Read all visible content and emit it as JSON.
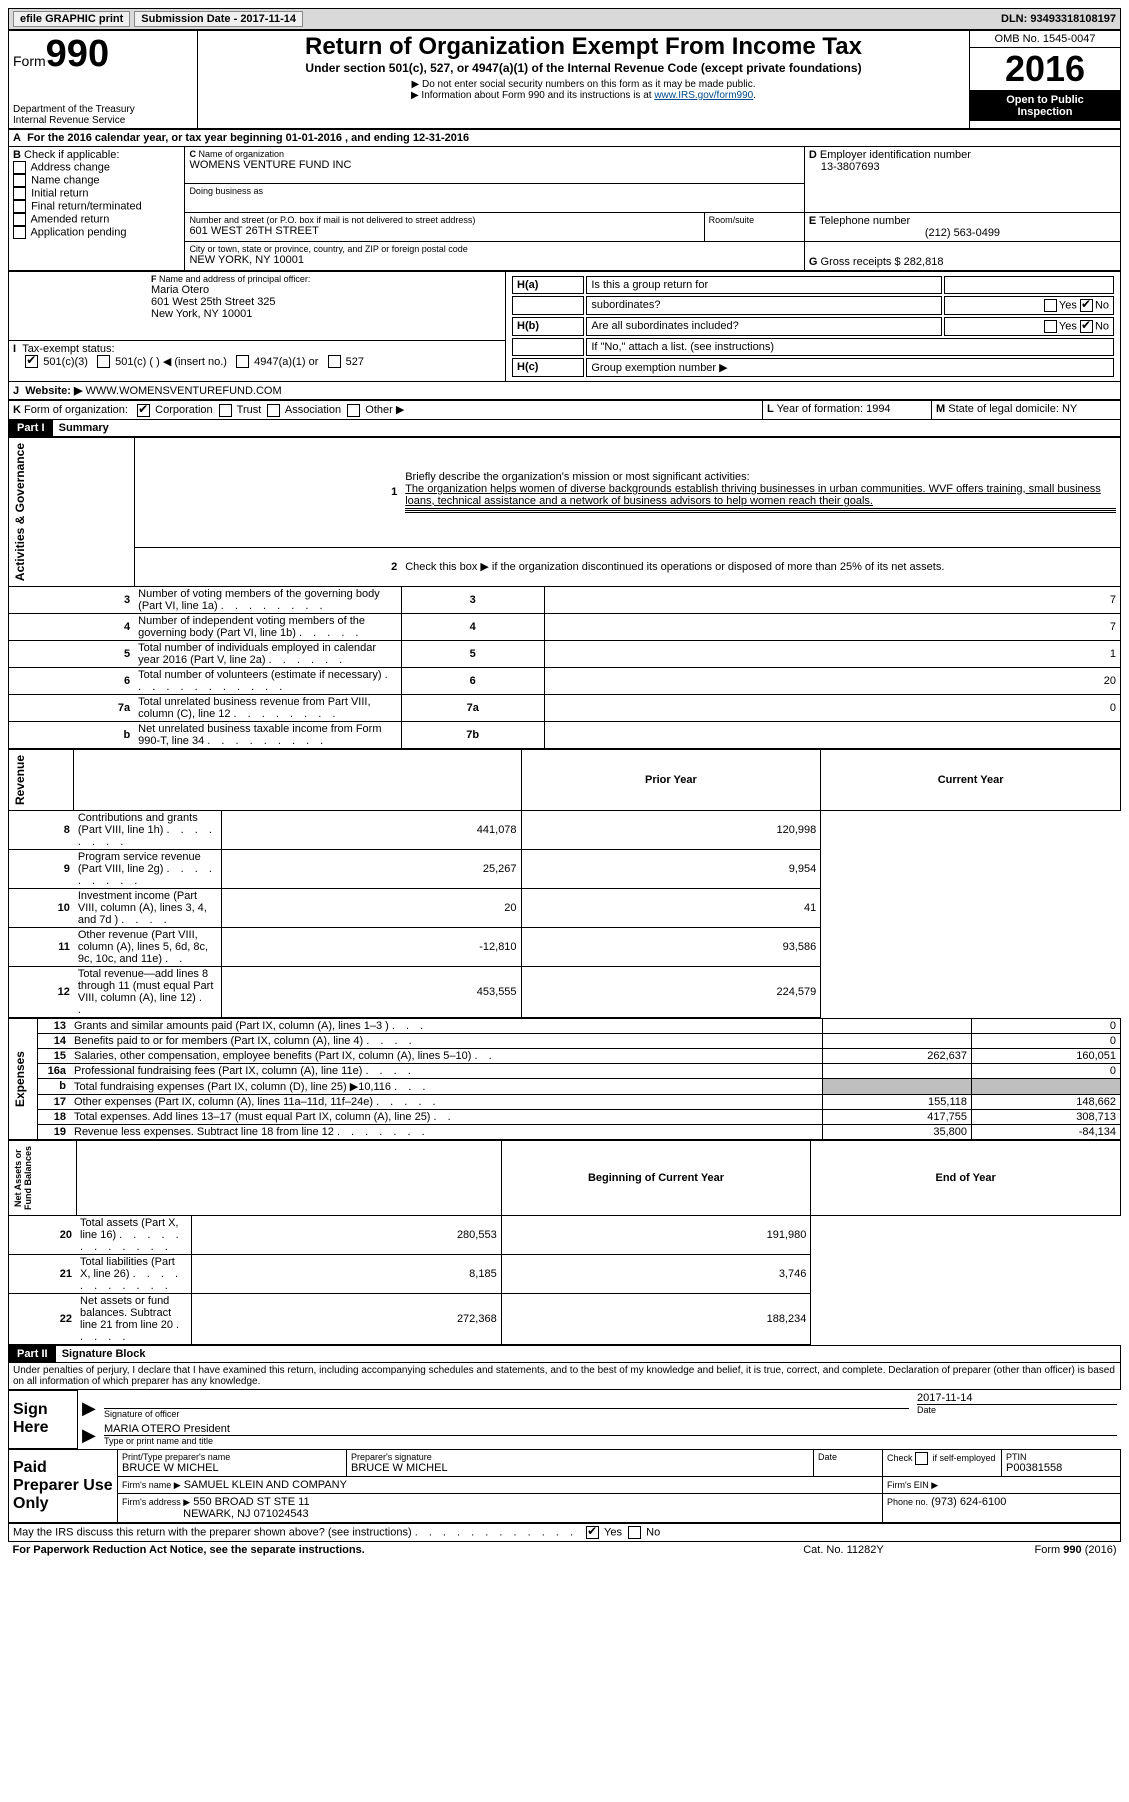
{
  "topbar": {
    "efile": "efile GRAPHIC print",
    "submission": "Submission Date - 2017-11-14",
    "dln": "DLN: 93493318108197"
  },
  "header": {
    "form_word": "Form",
    "form_num": "990",
    "dept": "Department of the Treasury",
    "irs": "Internal Revenue Service",
    "title": "Return of Organization Exempt From Income Tax",
    "subtitle": "Under section 501(c), 527, or 4947(a)(1) of the Internal Revenue Code (except private foundations)",
    "note1": "▶ Do not enter social security numbers on this form as it may be made public.",
    "note2_pre": "▶ Information about Form 990 and its instructions is at ",
    "note2_link": "www.IRS.gov/form990",
    "note2_post": ".",
    "omb": "OMB No. 1545-0047",
    "year": "2016",
    "open1": "Open to Public",
    "open2": "Inspection"
  },
  "sectionA": "For the 2016 calendar year, or tax year beginning 01-01-2016   , and ending 12-31-2016",
  "sectionB": {
    "title": "Check if applicable:",
    "opts": [
      "Address change",
      "Name change",
      "Initial return",
      "Final return/terminated",
      "Amended return",
      "Application pending"
    ]
  },
  "sectionC": {
    "name_label": "Name of organization",
    "name": "WOMENS VENTURE FUND INC",
    "dba": "Doing business as",
    "street_label": "Number and street (or P.O. box if mail is not delivered to street address)",
    "room": "Room/suite",
    "street": "601 WEST 26TH STREET",
    "city_label": "City or town, state or province, country, and ZIP or foreign postal code",
    "city": "NEW YORK, NY  10001"
  },
  "sectionD": {
    "label": "Employer identification number",
    "value": "13-3807693"
  },
  "sectionE": {
    "label": "Telephone number",
    "value": "(212) 563-0499"
  },
  "sectionG": {
    "label": "Gross receipts $",
    "value": "282,818"
  },
  "sectionF": {
    "label": "Name and address of principal officer:",
    "name": "Maria Otero",
    "addr1": "601 West 25th Street 325",
    "addr2": "New York, NY  10001"
  },
  "sectionH": {
    "a": "Is this a group return for",
    "a2": "subordinates?",
    "b": "Are all subordinates included?",
    "note": "If \"No,\" attach a list. (see instructions)",
    "c": "Group exemption number ▶",
    "yes": "Yes",
    "no": "No"
  },
  "sectionI": {
    "label": "Tax-exempt status:",
    "o1": "501(c)(3)",
    "o2": "501(c) (   ) ◀ (insert no.)",
    "o3": "4947(a)(1) or",
    "o4": "527"
  },
  "sectionJ": {
    "label": "Website: ▶",
    "value": "WWW.WOMENSVENTUREFUND.COM"
  },
  "sectionK": {
    "label": "Form of organization:",
    "opts": [
      "Corporation",
      "Trust",
      "Association",
      "Other ▶"
    ]
  },
  "sectionL": {
    "label": "Year of formation:",
    "value": "1994"
  },
  "sectionM": {
    "label": "State of legal domicile:",
    "value": "NY"
  },
  "part1": {
    "label": "Part I",
    "title": "Summary"
  },
  "summary": {
    "q1": "Briefly describe the organization's mission or most significant activities:",
    "mission": "The organization helps women of diverse backgrounds establish thriving businesses in urban communities. WVF offers training, small business loans, technical assistance and a network of business advisors to help women reach their goals.",
    "q2": "Check this box ▶         if the organization discontinued its operations or disposed of more than 25% of its net assets."
  },
  "sidelabels": {
    "gov": "Activities & Governance",
    "rev": "Revenue",
    "exp": "Expenses",
    "net": "Net Assets or\nFund Balances"
  },
  "govRows": [
    {
      "n": "3",
      "t": "Number of voting members of the governing body (Part VI, line 1a)",
      "b": "3",
      "v": "7"
    },
    {
      "n": "4",
      "t": "Number of independent voting members of the governing body (Part VI, line 1b)",
      "b": "4",
      "v": "7"
    },
    {
      "n": "5",
      "t": "Total number of individuals employed in calendar year 2016 (Part V, line 2a)",
      "b": "5",
      "v": "1"
    },
    {
      "n": "6",
      "t": "Total number of volunteers (estimate if necessary)",
      "b": "6",
      "v": "20"
    },
    {
      "n": "7a",
      "t": "Total unrelated business revenue from Part VIII, column (C), line 12",
      "b": "7a",
      "v": "0"
    },
    {
      "n": "b",
      "t": "Net unrelated business taxable income from Form 990-T, line 34",
      "b": "7b",
      "v": ""
    }
  ],
  "headers": {
    "prior": "Prior Year",
    "current": "Current Year",
    "begin": "Beginning of Current Year",
    "end": "End of Year"
  },
  "revRows": [
    {
      "n": "8",
      "t": "Contributions and grants (Part VIII, line 1h)",
      "p": "441,078",
      "c": "120,998"
    },
    {
      "n": "9",
      "t": "Program service revenue (Part VIII, line 2g)",
      "p": "25,267",
      "c": "9,954"
    },
    {
      "n": "10",
      "t": "Investment income (Part VIII, column (A), lines 3, 4, and 7d )",
      "p": "20",
      "c": "41"
    },
    {
      "n": "11",
      "t": "Other revenue (Part VIII, column (A), lines 5, 6d, 8c, 9c, 10c, and 11e)",
      "p": "-12,810",
      "c": "93,586"
    },
    {
      "n": "12",
      "t": "Total revenue—add lines 8 through 11 (must equal Part VIII, column (A), line 12)",
      "p": "453,555",
      "c": "224,579"
    }
  ],
  "expRows": [
    {
      "n": "13",
      "t": "Grants and similar amounts paid (Part IX, column (A), lines 1–3 )",
      "p": "",
      "c": "0"
    },
    {
      "n": "14",
      "t": "Benefits paid to or for members (Part IX, column (A), line 4)",
      "p": "",
      "c": "0"
    },
    {
      "n": "15",
      "t": "Salaries, other compensation, employee benefits (Part IX, column (A), lines 5–10)",
      "p": "262,637",
      "c": "160,051"
    },
    {
      "n": "16a",
      "t": "Professional fundraising fees (Part IX, column (A), line 11e)",
      "p": "",
      "c": "0"
    },
    {
      "n": "b",
      "t": "Total fundraising expenses (Part IX, column (D), line 25) ▶10,116",
      "p": "SHADE",
      "c": "SHADE"
    },
    {
      "n": "17",
      "t": "Other expenses (Part IX, column (A), lines 11a–11d, 11f–24e)",
      "p": "155,118",
      "c": "148,662"
    },
    {
      "n": "18",
      "t": "Total expenses. Add lines 13–17 (must equal Part IX, column (A), line 25)",
      "p": "417,755",
      "c": "308,713"
    },
    {
      "n": "19",
      "t": "Revenue less expenses. Subtract line 18 from line 12",
      "p": "35,800",
      "c": "-84,134"
    }
  ],
  "netRows": [
    {
      "n": "20",
      "t": "Total assets (Part X, line 16)",
      "p": "280,553",
      "c": "191,980"
    },
    {
      "n": "21",
      "t": "Total liabilities (Part X, line 26)",
      "p": "8,185",
      "c": "3,746"
    },
    {
      "n": "22",
      "t": "Net assets or fund balances. Subtract line 21 from line 20",
      "p": "272,368",
      "c": "188,234"
    }
  ],
  "part2": {
    "label": "Part II",
    "title": "Signature Block"
  },
  "sig": {
    "decl": "Under penalties of perjury, I declare that I have examined this return, including accompanying schedules and statements, and to the best of my knowledge and belief, it is true, correct, and complete. Declaration of preparer (other than officer) is based on all information of which preparer has any knowledge.",
    "signhere": "Sign Here",
    "sigoff": "Signature of officer",
    "date": "Date",
    "datev": "2017-11-14",
    "name": "MARIA OTERO President",
    "typelabel": "Type or print name and title"
  },
  "paid": {
    "title": "Paid Preparer Use Only",
    "prep_name_l": "Print/Type preparer's name",
    "prep_name": "BRUCE W MICHEL",
    "prep_sig_l": "Preparer's signature",
    "prep_sig": "BRUCE W MICHEL",
    "date_l": "Date",
    "check_l": "Check         if self-employed",
    "ptin_l": "PTIN",
    "ptin": "P00381558",
    "firm_name_l": "Firm's name      ▶",
    "firm_name": "SAMUEL KLEIN AND COMPANY",
    "firm_ein_l": "Firm's EIN ▶",
    "firm_addr_l": "Firm's address ▶",
    "firm_addr1": "550 BROAD ST STE 11",
    "firm_addr2": "NEWARK, NJ  071024543",
    "phone_l": "Phone no.",
    "phone": "(973) 624-6100"
  },
  "footer": {
    "discuss": "May the IRS discuss this return with the preparer shown above? (see instructions)",
    "yes": "Yes",
    "no": "No",
    "paperwork": "For Paperwork Reduction Act Notice, see the separate instructions.",
    "cat": "Cat. No. 11282Y",
    "form": "Form 990 (2016)"
  }
}
